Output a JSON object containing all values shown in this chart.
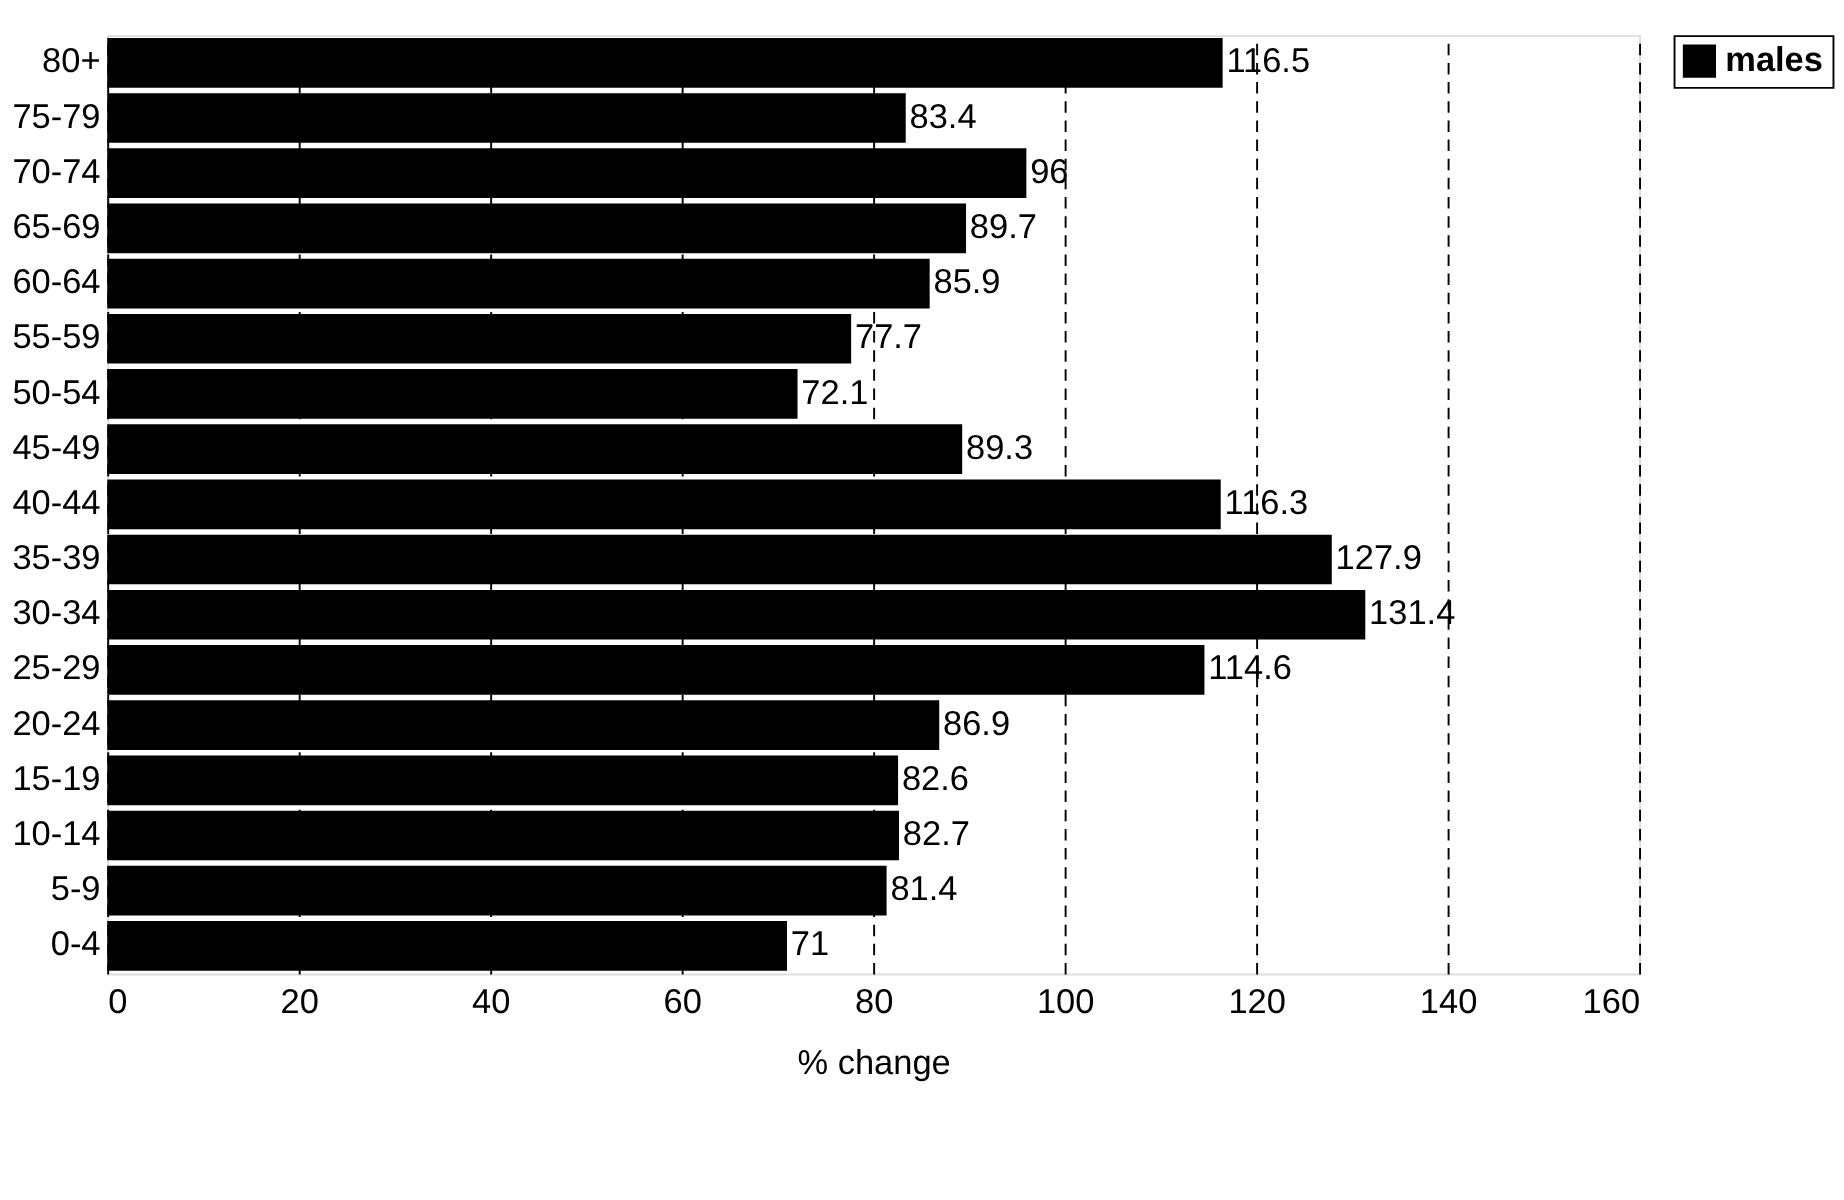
{
  "chart_data": {
    "type": "bar",
    "orientation": "horizontal",
    "xlabel": "% change",
    "categories": [
      "80+",
      "75-79",
      "70-74",
      "65-69",
      "60-64",
      "55-59",
      "50-54",
      "45-49",
      "40-44",
      "35-39",
      "30-34",
      "25-29",
      "20-24",
      "15-19",
      "10-14",
      "5-9",
      "0-4"
    ],
    "series": [
      {
        "name": "males",
        "color": "#000000",
        "values": [
          116.5,
          83.4,
          96,
          89.7,
          85.9,
          77.7,
          72.1,
          89.3,
          116.3,
          127.9,
          131.4,
          114.6,
          86.9,
          82.6,
          82.7,
          81.4,
          71
        ]
      }
    ],
    "xlim": [
      0,
      160
    ],
    "xticks": [
      0,
      20,
      40,
      60,
      80,
      100,
      120,
      140,
      160
    ],
    "grid": "x",
    "line_style": "dashed",
    "legend": "right",
    "data_labels": true
  }
}
